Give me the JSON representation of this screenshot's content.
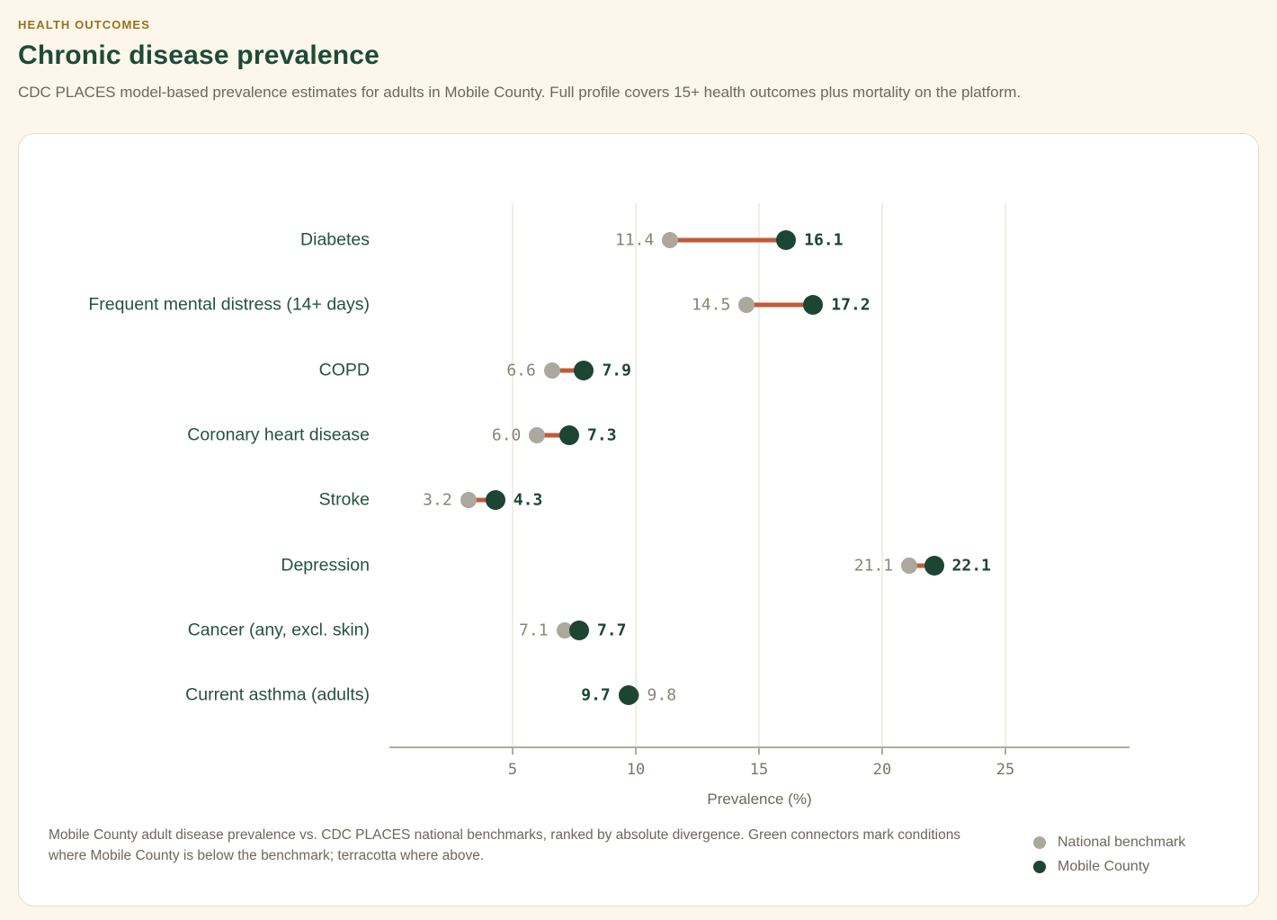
{
  "header": {
    "eyebrow": "HEALTH OUTCOMES",
    "title": "Chronic disease prevalence",
    "subtitle": "CDC PLACES model-based prevalence estimates for adults in Mobile County. Full profile covers 15+ health outcomes plus mortality on the platform."
  },
  "chart_data": {
    "type": "dumbbell",
    "title": "Chronic disease prevalence",
    "xlabel": "Prevalence (%)",
    "x_ticks": [
      5,
      10,
      15,
      20,
      25
    ],
    "x_range": [
      0,
      30
    ],
    "grid": true,
    "series": [
      {
        "name": "National benchmark"
      },
      {
        "name": "Mobile County"
      }
    ],
    "rows": [
      {
        "label": "Diabetes",
        "national": 11.4,
        "county": 16.1
      },
      {
        "label": "Frequent mental distress (14+ days)",
        "national": 14.5,
        "county": 17.2
      },
      {
        "label": "COPD",
        "national": 6.6,
        "county": 7.9
      },
      {
        "label": "Coronary heart disease",
        "national": 6.0,
        "county": 7.3
      },
      {
        "label": "Stroke",
        "national": 3.2,
        "county": 4.3
      },
      {
        "label": "Depression",
        "national": 21.1,
        "county": 22.1
      },
      {
        "label": "Cancer (any, excl. skin)",
        "national": 7.1,
        "county": 7.7
      },
      {
        "label": "Current asthma (adults)",
        "national": 9.8,
        "county": 9.7
      }
    ],
    "legend_position": "bottom-right"
  },
  "footnote": {
    "line1": "Mobile County adult disease prevalence vs. CDC PLACES national benchmarks, ranked by absolute divergence. Green connectors mark conditions",
    "line2": "where Mobile County is below the benchmark; terracotta where above."
  },
  "legend": {
    "items": [
      {
        "label": "National benchmark"
      },
      {
        "label": "Mobile County"
      }
    ]
  },
  "colors": {
    "background": "#FCF7EA",
    "card_border": "#E7DDC6",
    "eyebrow": "#97701E",
    "title": "#1E4B39",
    "muted_text": "#6E675C",
    "category_label": "#24523F",
    "national_dot": "#ACA89E",
    "county_dot": "#1C4532",
    "connector_above": "#C05B3A",
    "connector_below": "#3E7A5C",
    "axis": "#AEACA1",
    "tick_label": "#7C7568",
    "gridline": "#F1EEE6",
    "national_value_label": "#8B8478"
  }
}
